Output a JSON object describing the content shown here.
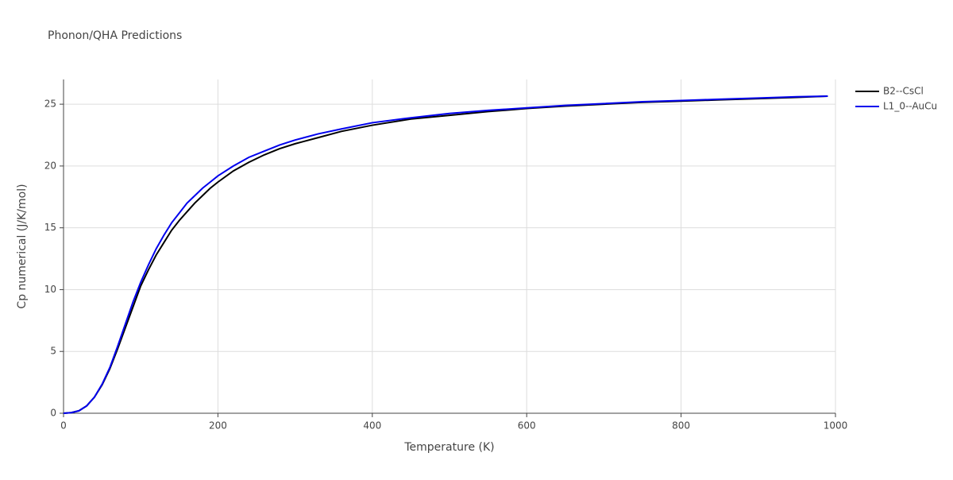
{
  "chart_data": {
    "type": "line",
    "title": "Phonon/QHA Predictions",
    "x_label": "Temperature (K)",
    "y_label": "Cp numerical (J/K/mol)",
    "x": [
      0,
      10,
      20,
      30,
      40,
      50,
      60,
      70,
      80,
      90,
      100,
      110,
      120,
      130,
      140,
      150,
      160,
      170,
      180,
      190,
      200,
      220,
      240,
      260,
      280,
      300,
      330,
      360,
      400,
      450,
      500,
      550,
      600,
      650,
      700,
      750,
      800,
      850,
      900,
      950,
      990
    ],
    "series": [
      {
        "name": "B2--CsCl",
        "color": "#000000",
        "values": [
          0,
          0.05,
          0.2,
          0.6,
          1.3,
          2.3,
          3.6,
          5.2,
          6.9,
          8.6,
          10.3,
          11.6,
          12.8,
          13.8,
          14.8,
          15.6,
          16.3,
          17.0,
          17.6,
          18.2,
          18.7,
          19.6,
          20.3,
          20.9,
          21.4,
          21.8,
          22.3,
          22.8,
          23.3,
          23.8,
          24.1,
          24.4,
          24.65,
          24.85,
          25.0,
          25.15,
          25.25,
          25.35,
          25.45,
          25.55,
          25.65
        ]
      },
      {
        "name": "L1_0--AuCu",
        "color": "#0000ee",
        "values": [
          0,
          0.05,
          0.2,
          0.6,
          1.3,
          2.35,
          3.7,
          5.4,
          7.2,
          9.0,
          10.6,
          12.0,
          13.3,
          14.4,
          15.4,
          16.2,
          17.0,
          17.6,
          18.2,
          18.7,
          19.2,
          20.0,
          20.7,
          21.2,
          21.7,
          22.1,
          22.6,
          23.0,
          23.5,
          23.9,
          24.25,
          24.5,
          24.7,
          24.9,
          25.05,
          25.2,
          25.3,
          25.4,
          25.5,
          25.6,
          25.65
        ]
      }
    ],
    "xlim": [
      0,
      1000
    ],
    "xticks": [
      0,
      200,
      400,
      600,
      800,
      1000
    ],
    "ylim": [
      0,
      27
    ],
    "yticks": [
      0,
      5,
      10,
      15,
      20,
      25
    ],
    "grid": true,
    "legend": "top-right"
  }
}
